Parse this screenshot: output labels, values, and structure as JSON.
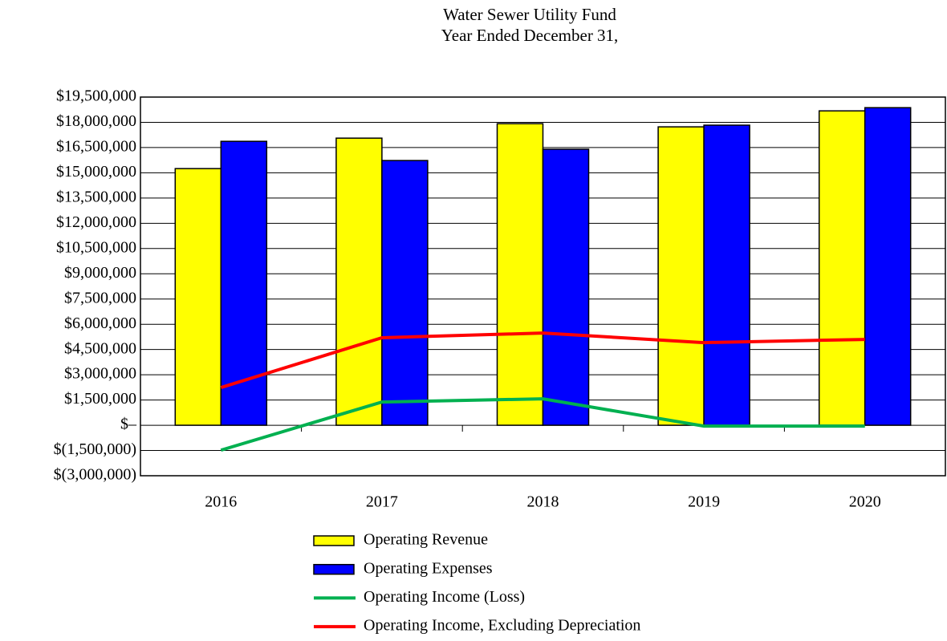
{
  "chart_data": {
    "type": "bar",
    "title": "Water Sewer Utility Fund",
    "subtitle": "Year Ended December 31,",
    "categories": [
      "2016",
      "2017",
      "2018",
      "2019",
      "2020"
    ],
    "series": [
      {
        "name": "Operating Revenue",
        "type": "bar",
        "color": "#ffff00",
        "values": [
          15250000,
          17060000,
          17920000,
          17730000,
          18680000
        ]
      },
      {
        "name": "Operating Expenses",
        "type": "bar",
        "color": "#0000ff",
        "values": [
          16870000,
          15730000,
          16400000,
          17830000,
          18870000
        ]
      },
      {
        "name": "Operating Income (Loss)",
        "type": "line",
        "color": "#00b050",
        "values": [
          -1480000,
          1380000,
          1570000,
          -50000,
          -50000
        ]
      },
      {
        "name": "Operating Income, Excluding Depreciation",
        "type": "line",
        "color": "#ff0000",
        "values": [
          2240000,
          5200000,
          5480000,
          4910000,
          5100000
        ]
      }
    ],
    "ylim": [
      -3000000,
      19500000
    ],
    "yticks": [
      {
        "value": -3000000,
        "label": "$(3,000,000)"
      },
      {
        "value": -1500000,
        "label": "$(1,500,000)"
      },
      {
        "value": 0,
        "label": "$–"
      },
      {
        "value": 1500000,
        "label": "$1,500,000"
      },
      {
        "value": 3000000,
        "label": "$3,000,000"
      },
      {
        "value": 4500000,
        "label": "$4,500,000"
      },
      {
        "value": 6000000,
        "label": "$6,000,000"
      },
      {
        "value": 7500000,
        "label": "$7,500,000"
      },
      {
        "value": 9000000,
        "label": "$9,000,000"
      },
      {
        "value": 10500000,
        "label": "$10,500,000"
      },
      {
        "value": 12000000,
        "label": "$12,000,000"
      },
      {
        "value": 13500000,
        "label": "$13,500,000"
      },
      {
        "value": 15000000,
        "label": "$15,000,000"
      },
      {
        "value": 16500000,
        "label": "$16,500,000"
      },
      {
        "value": 18000000,
        "label": "$18,000,000"
      },
      {
        "value": 19500000,
        "label": "$19,500,000"
      }
    ],
    "grid": true
  }
}
